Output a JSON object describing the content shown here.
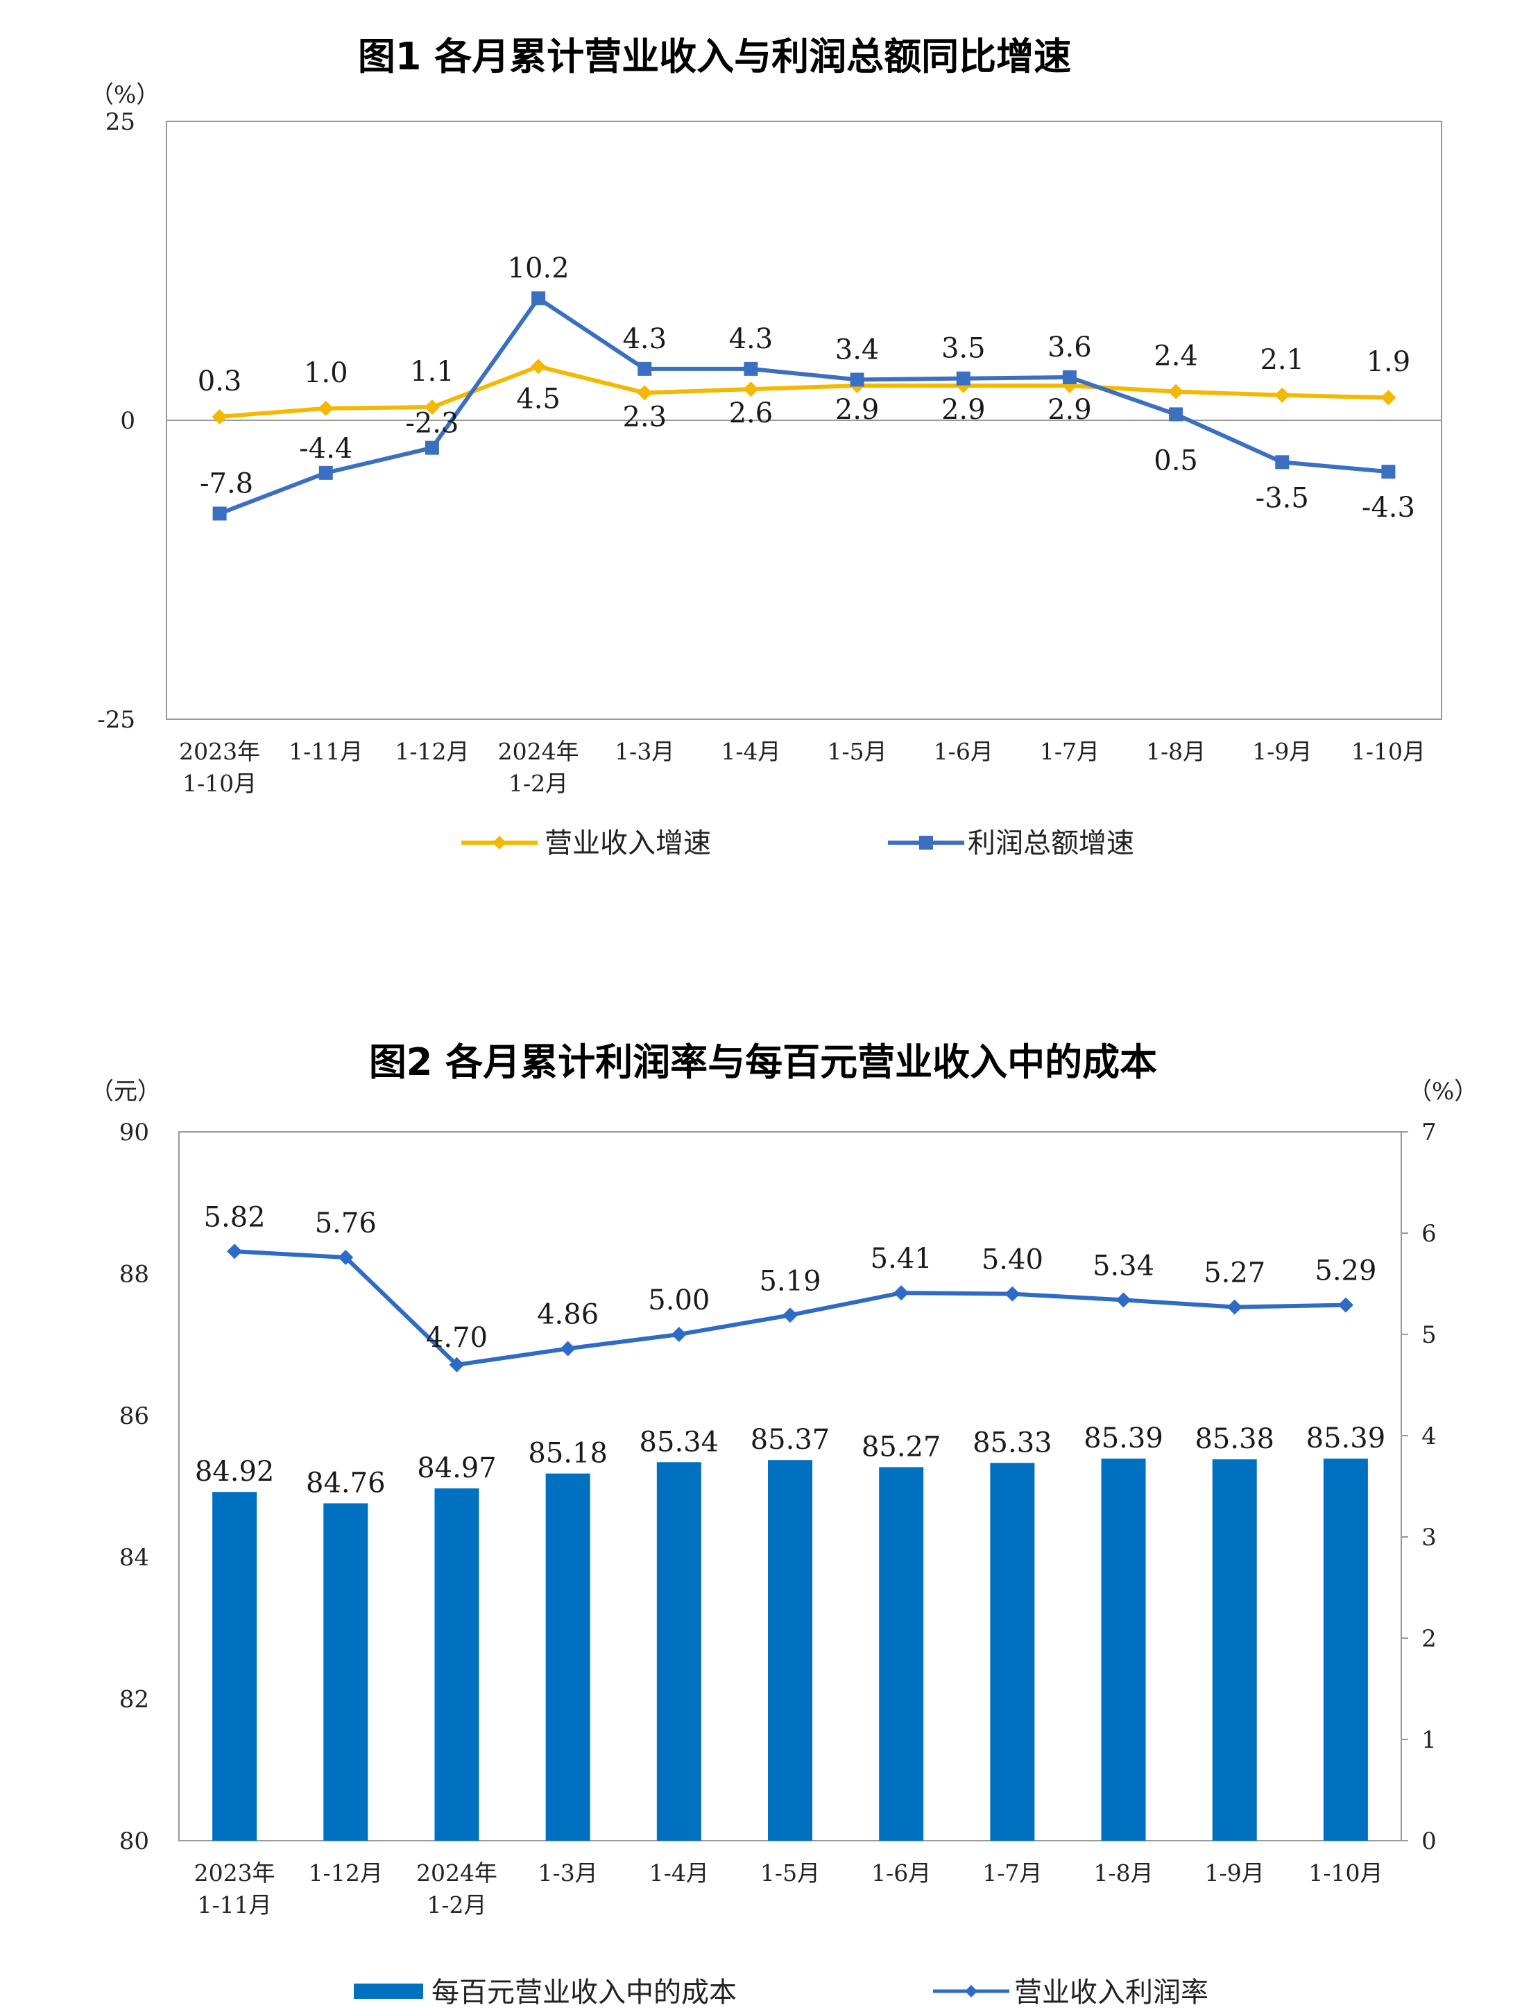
{
  "chart_data": [
    {
      "type": "line",
      "title": "图1  各月累计营业收入与利润总额同比增速",
      "yunit": "（%）",
      "ylim": [
        -25,
        25
      ],
      "yticks": [
        "25",
        "0",
        "-25"
      ],
      "categories": [
        [
          "2023年",
          "1-10月"
        ],
        [
          "1-11月"
        ],
        [
          "1-12月"
        ],
        [
          "2024年",
          "1-2月"
        ],
        [
          "1-3月"
        ],
        [
          "1-4月"
        ],
        [
          "1-5月"
        ],
        [
          "1-6月"
        ],
        [
          "1-7月"
        ],
        [
          "1-8月"
        ],
        [
          "1-9月"
        ],
        [
          "1-10月"
        ]
      ],
      "series": [
        {
          "name": "营业收入增速",
          "color": "#F5B800",
          "marker": "diamond",
          "values": [
            0.3,
            1.0,
            1.1,
            4.5,
            2.3,
            2.6,
            2.9,
            2.9,
            2.9,
            2.4,
            2.1,
            1.9
          ],
          "labels": [
            "0.3",
            "1.0",
            "1.1",
            "4.5",
            "2.3",
            "2.6",
            "2.9",
            "2.9",
            "2.9",
            "2.4",
            "2.1",
            "1.9"
          ]
        },
        {
          "name": "利润总额增速",
          "color": "#3A6FC1",
          "marker": "square",
          "values": [
            -7.8,
            -4.4,
            -2.3,
            10.2,
            4.3,
            4.3,
            3.4,
            3.5,
            3.6,
            0.5,
            -3.5,
            -4.3
          ],
          "labels": [
            "-7.8",
            "-4.4",
            "-2.3",
            "10.2",
            "4.3",
            "4.3",
            "3.4",
            "3.5",
            "3.6",
            "0.5",
            "-3.5",
            "-4.3"
          ]
        }
      ],
      "grid": false,
      "legend_position": "bottom"
    },
    {
      "type": "bar+line",
      "title": "图2  各月累计利润率与每百元营业收入中的成本",
      "y_left_unit": "（元）",
      "y_right_unit": "（%）",
      "y_left_lim": [
        80,
        90
      ],
      "y_left_ticks": [
        "90",
        "88",
        "86",
        "84",
        "82",
        "80"
      ],
      "y_right_lim": [
        0,
        7
      ],
      "y_right_ticks": [
        "7",
        "6",
        "5",
        "4",
        "3",
        "2",
        "1",
        "0"
      ],
      "categories": [
        [
          "2023年",
          "1-11月"
        ],
        [
          "1-12月"
        ],
        [
          "2024年",
          "1-2月"
        ],
        [
          "1-3月"
        ],
        [
          "1-4月"
        ],
        [
          "1-5月"
        ],
        [
          "1-6月"
        ],
        [
          "1-7月"
        ],
        [
          "1-8月"
        ],
        [
          "1-9月"
        ],
        [
          "1-10月"
        ]
      ],
      "bars": {
        "name": "每百元营业收入中的成本",
        "color": "#0070C0",
        "axis": "left",
        "values": [
          84.92,
          84.76,
          84.97,
          85.18,
          85.34,
          85.37,
          85.27,
          85.33,
          85.39,
          85.38,
          85.39
        ],
        "labels": [
          "84.92",
          "84.76",
          "84.97",
          "85.18",
          "85.34",
          "85.37",
          "85.27",
          "85.33",
          "85.39",
          "85.38",
          "85.39"
        ]
      },
      "line": {
        "name": "营业收入利润率",
        "color": "#2E6BC6",
        "axis": "right",
        "marker": "diamond",
        "values": [
          5.82,
          5.76,
          4.7,
          4.86,
          5.0,
          5.19,
          5.41,
          5.4,
          5.34,
          5.27,
          5.29
        ],
        "labels": [
          "5.82",
          "5.76",
          "4.70",
          "4.86",
          "5.00",
          "5.19",
          "5.41",
          "5.40",
          "5.34",
          "5.27",
          "5.29"
        ]
      },
      "grid": false,
      "legend_position": "bottom"
    }
  ]
}
